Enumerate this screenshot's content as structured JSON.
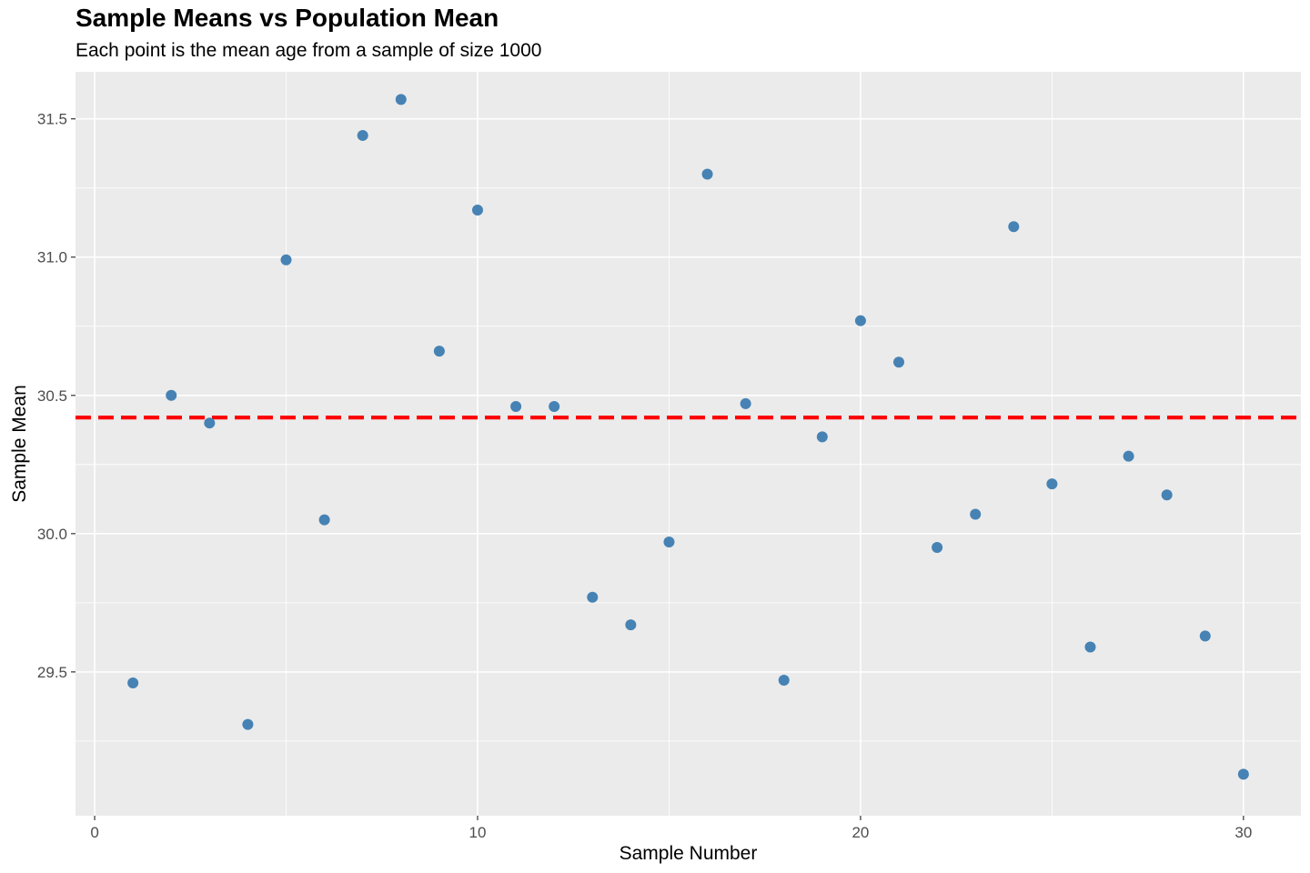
{
  "header": {
    "title": "Sample Means vs Population Mean",
    "subtitle": "Each point is the mean age from a sample of size 1000"
  },
  "chart_data": {
    "type": "scatter",
    "title": "Sample Means vs Population Mean",
    "subtitle": "Each point is the mean age from a sample of size 1000",
    "xlabel": "Sample Number",
    "ylabel": "Sample Mean",
    "xlim": [
      -0.5,
      31.5
    ],
    "ylim": [
      28.98,
      31.67
    ],
    "x_ticks": [
      0,
      10,
      20,
      30
    ],
    "x_tick_labels": [
      "0",
      "10",
      "20",
      "30"
    ],
    "y_ticks": [
      29.5,
      30.0,
      30.5,
      31.0,
      31.5
    ],
    "y_tick_labels": [
      "29.5",
      "30.0",
      "30.5",
      "31.0",
      "31.5"
    ],
    "grid": true,
    "point_color": "#4682B4",
    "panel_color": "#EBEBEB",
    "grid_color": "#FFFFFF",
    "x": [
      1,
      2,
      3,
      4,
      5,
      6,
      7,
      8,
      9,
      10,
      11,
      12,
      13,
      14,
      15,
      16,
      17,
      18,
      19,
      20,
      21,
      22,
      23,
      24,
      25,
      26,
      27,
      28,
      29,
      30
    ],
    "y": [
      29.46,
      30.5,
      30.4,
      29.31,
      30.99,
      30.05,
      31.44,
      31.57,
      30.66,
      31.17,
      30.46,
      30.46,
      29.77,
      29.67,
      29.97,
      31.3,
      30.47,
      29.47,
      30.35,
      30.77,
      30.62,
      29.95,
      30.07,
      31.11,
      30.18,
      29.59,
      30.28,
      30.14,
      29.63,
      29.13
    ],
    "reference_line": {
      "y": 30.42,
      "color": "#FF0000",
      "style": "dashed"
    }
  }
}
